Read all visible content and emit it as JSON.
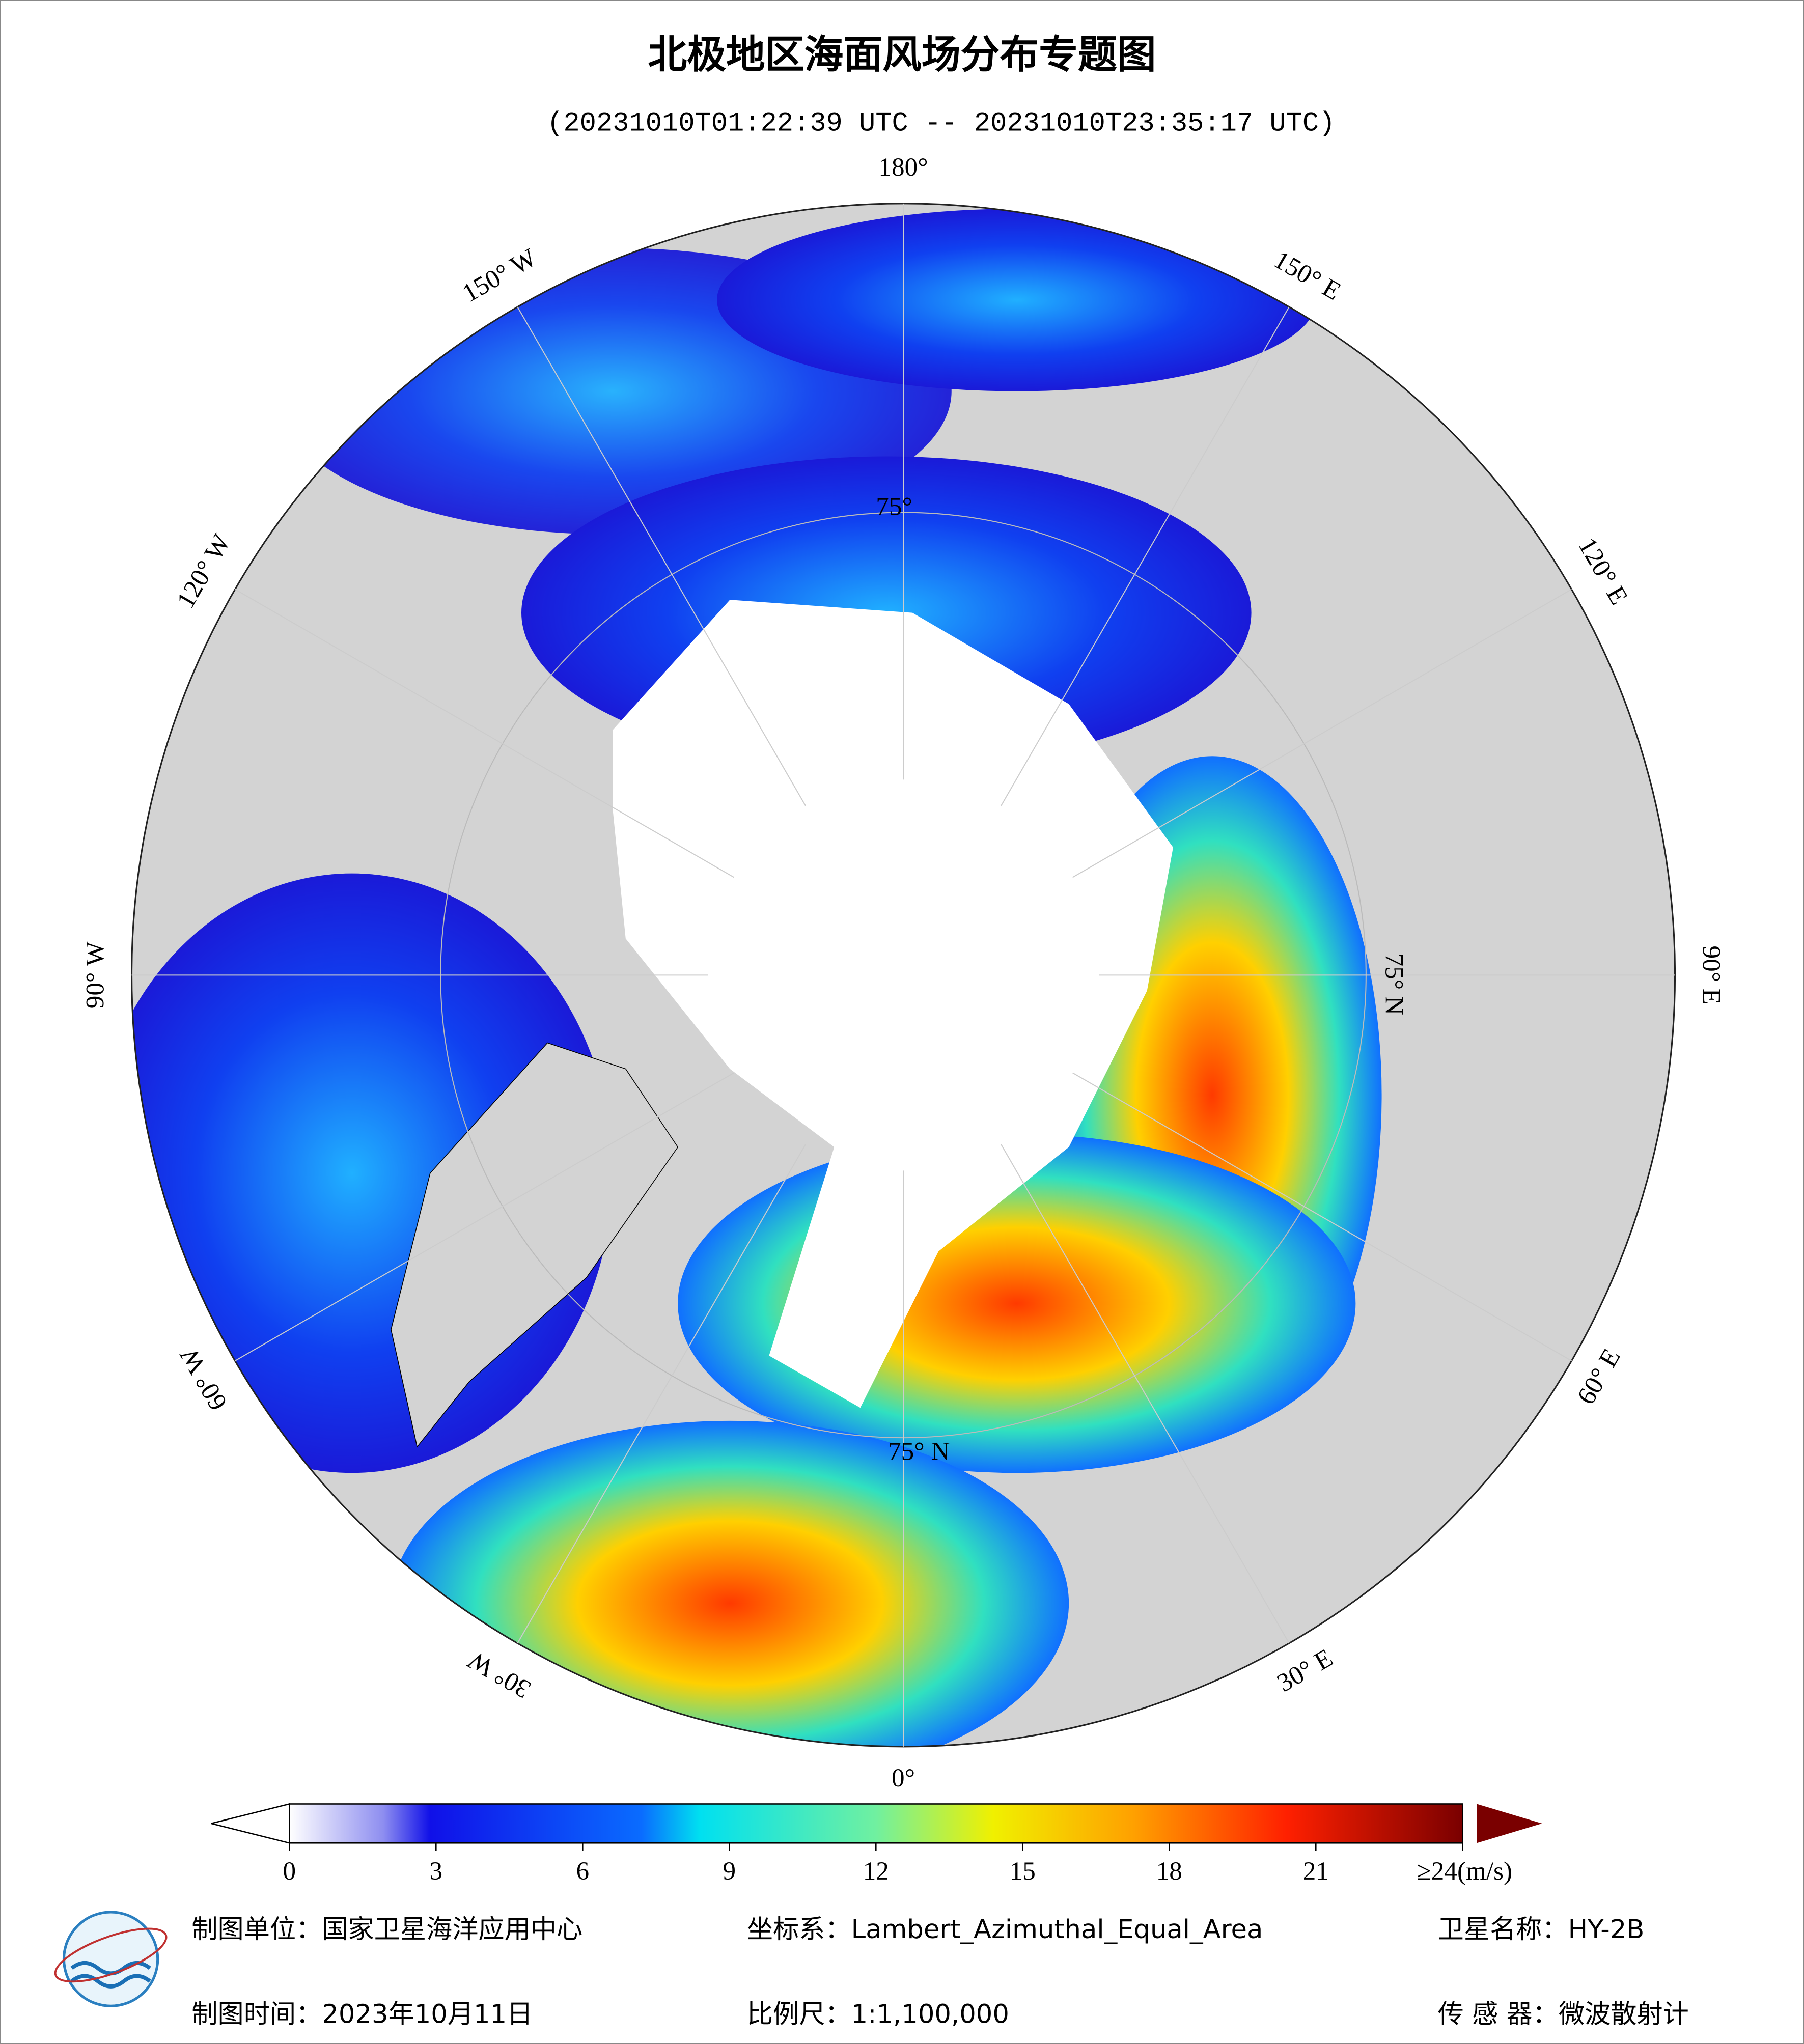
{
  "header": {
    "title": "北极地区海面风场分布专题图",
    "subtitle": "(20231010T01:22:39 UTC -- 20231010T23:35:17 UTC)"
  },
  "map": {
    "longitude_labels": [
      "180°",
      "150° E",
      "120° E",
      "90° E",
      "60° E",
      "30° E",
      "0°",
      "30° W",
      "60° W",
      "90° W",
      "120° W",
      "150° W"
    ],
    "latitude_labels": [
      "75°",
      "75° N",
      "75° N"
    ]
  },
  "colorbar": {
    "range": [
      0,
      24
    ],
    "ticks": [
      0,
      3,
      6,
      9,
      12,
      15,
      18,
      21,
      {
        "value": 24,
        "label": "≥24(m/s)"
      }
    ]
  },
  "footer": {
    "unit": "制图单位：国家卫星海洋应用中心",
    "date": "制图时间：2023年10月11日",
    "projection": "坐标系：Lambert_Azimuthal_Equal_Area",
    "scale": "比例尺：1:1,100,000",
    "satellite": "卫星名称：HY-2B",
    "sensor": "传 感 器：微波散射计"
  }
}
